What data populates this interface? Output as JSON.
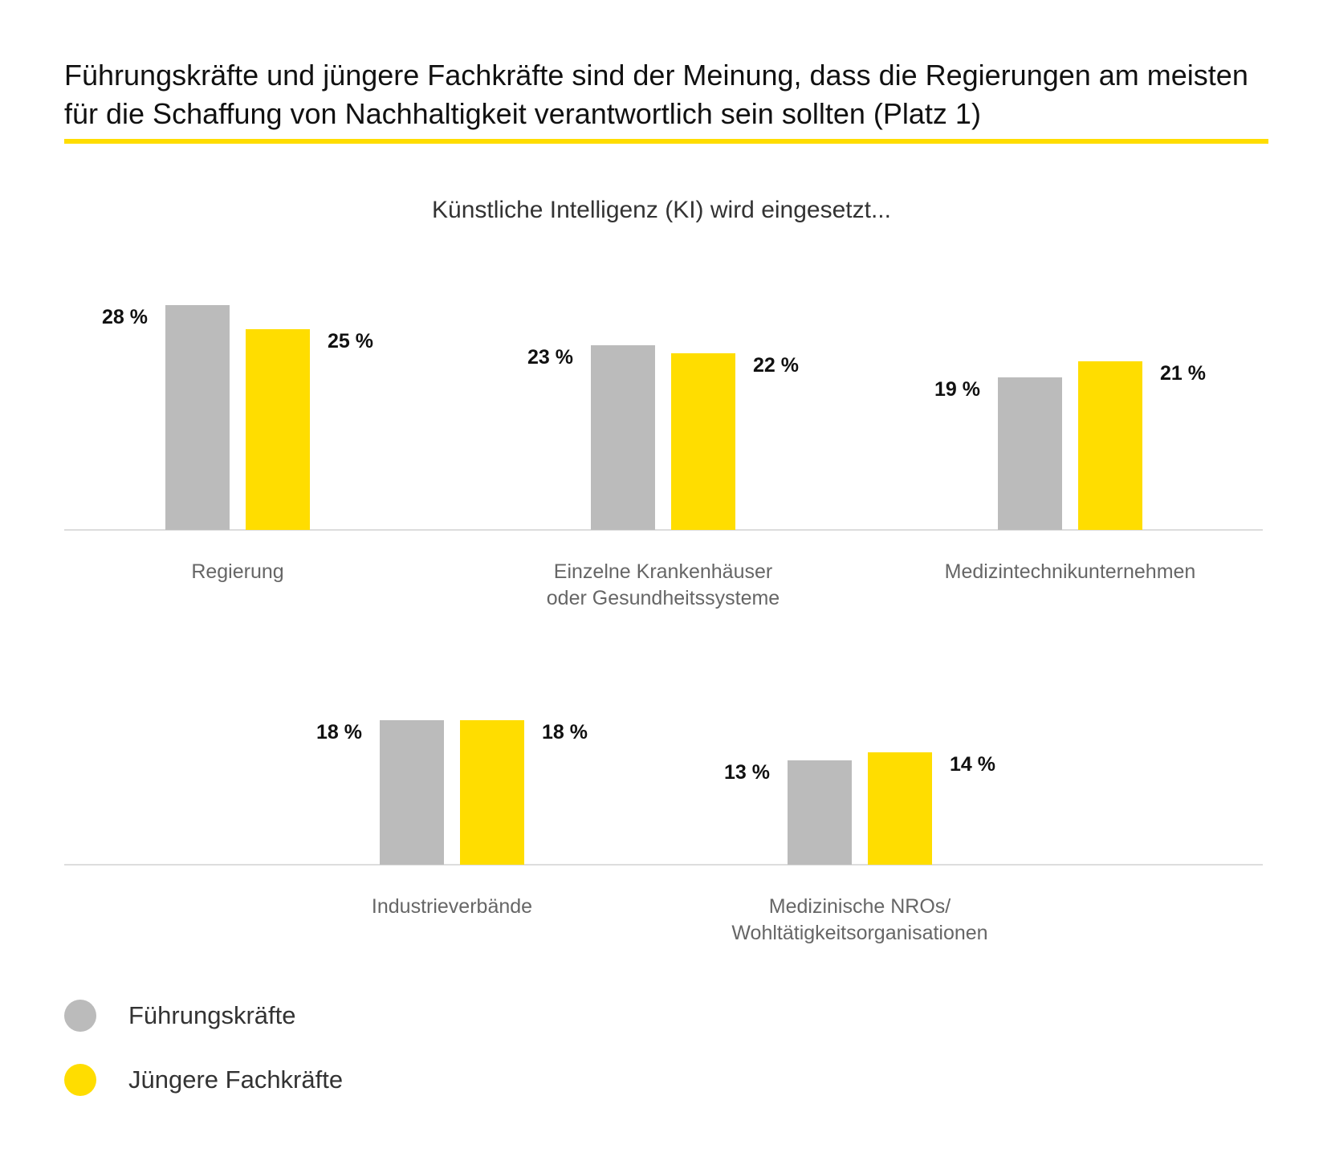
{
  "title": "Führungskräfte und jüngere Fachkräfte sind der Meinung, dass die Regierungen am meisten für die Schaffung von Nachhaltigkeit verantwortlich sein sollten (Platz 1)",
  "subtitle": "Künstliche Intelligenz (KI) wird eingesetzt...",
  "colors": {
    "accent": "#FFDD00",
    "fuehrungskraefte": "#BBBBBB",
    "juengere_fachkraefte": "#FFDD00",
    "baseline": "#DDDDDD",
    "category_text": "#666666"
  },
  "legend": [
    {
      "label": "Führungskräfte",
      "color": "#BBBBBB"
    },
    {
      "label": "Jüngere Fachkräfte",
      "color": "#FFDD00"
    }
  ],
  "chart_data": {
    "type": "bar",
    "title": "Führungskräfte und jüngere Fachkräfte sind der Meinung, dass die Regierungen am meisten für die Schaffung von Nachhaltigkeit verantwortlich sein sollten (Platz 1)",
    "subtitle": "Künstliche Intelligenz (KI) wird eingesetzt...",
    "categories": [
      "Regierung",
      "Einzelne Krankenhäuser oder Gesundheitssysteme",
      "Medizintechnikunternehmen",
      "Industrieverbände",
      "Medizinische NROs/ Wohltätigkeitsorganisationen"
    ],
    "category_lines": [
      [
        "Regierung"
      ],
      [
        "Einzelne Krankenhäuser",
        "oder Gesundheitssysteme"
      ],
      [
        "Medizintechnikunternehmen"
      ],
      [
        "Industrieverbände"
      ],
      [
        "Medizinische NROs/",
        "Wohltätigkeitsorganisationen"
      ]
    ],
    "series": [
      {
        "name": "Führungskräfte",
        "values": [
          28,
          23,
          19,
          18,
          13
        ],
        "labels": [
          "28 %",
          "23 %",
          "19 %",
          "18 %",
          "13 %"
        ]
      },
      {
        "name": "Jüngere Fachkräfte",
        "values": [
          25,
          22,
          21,
          18,
          14
        ],
        "labels": [
          "25 %",
          "22 %",
          "21 %",
          "18 %",
          "14 %"
        ]
      }
    ],
    "unit": "%",
    "grid": false,
    "legend_position": "bottom-left"
  }
}
